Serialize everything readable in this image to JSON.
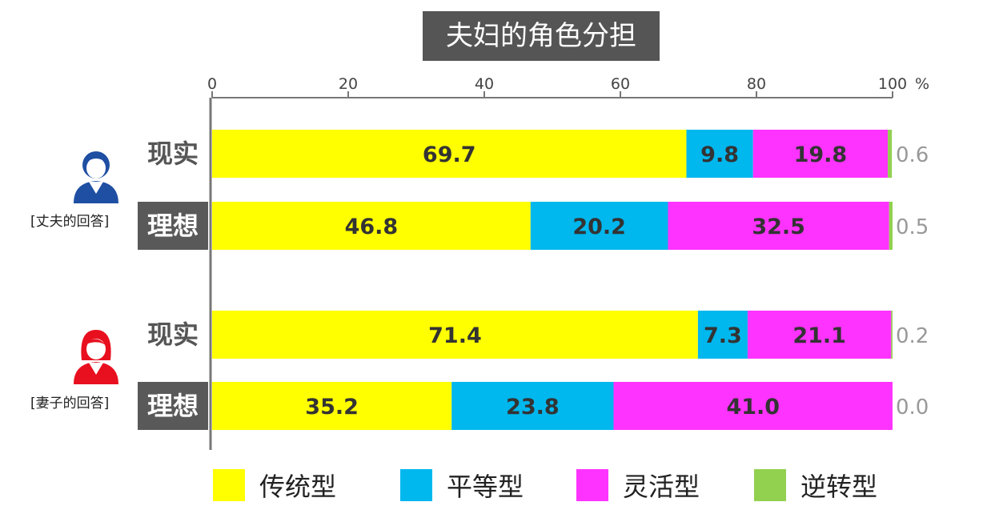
{
  "chart_data": {
    "type": "bar",
    "orientation": "horizontal",
    "stacked": true,
    "title": "夫妇的角色分担",
    "xlim": [
      0,
      100
    ],
    "xticks": [
      0,
      20,
      40,
      60,
      80,
      100
    ],
    "x_unit": "%",
    "groups": [
      {
        "label": "[丈夫的回答]",
        "icon": "male-user-icon",
        "rows": [
          {
            "label": "现实",
            "values": [
              69.7,
              9.8,
              19.8,
              0.6
            ]
          },
          {
            "label": "理想",
            "values": [
              46.8,
              20.2,
              32.5,
              0.5
            ]
          }
        ]
      },
      {
        "label": "[妻子的回答]",
        "icon": "female-user-icon",
        "rows": [
          {
            "label": "现实",
            "values": [
              71.4,
              7.3,
              21.1,
              0.2
            ]
          },
          {
            "label": "理想",
            "values": [
              35.2,
              23.8,
              41.0,
              0.0
            ]
          }
        ]
      }
    ],
    "series": [
      {
        "name": "传统型",
        "color": "#FFFF00"
      },
      {
        "name": "平等型",
        "color": "#00B7EE"
      },
      {
        "name": "灵活型",
        "color": "#FF33FF"
      },
      {
        "name": "逆转型",
        "color": "#92D050"
      }
    ],
    "legend_position": "bottom"
  },
  "colors": {
    "male_icon": "#1F4FA3",
    "female_icon": "#E8101F",
    "label_box": "#595959",
    "title_box": "#555555"
  }
}
